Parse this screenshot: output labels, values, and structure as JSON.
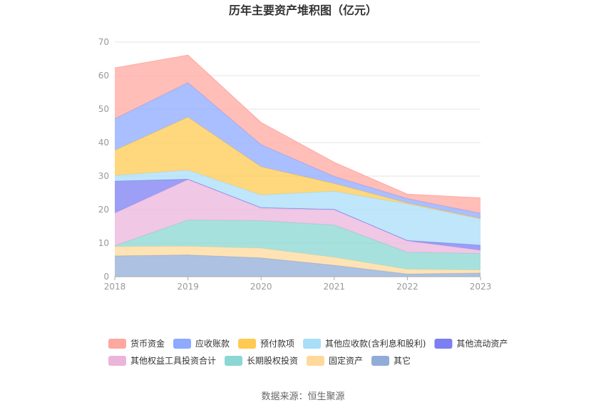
{
  "chart_data": {
    "type": "area",
    "stacked": true,
    "title": "历年主要资产堆积图（亿元）",
    "x": [
      "2018",
      "2019",
      "2020",
      "2021",
      "2022",
      "2023"
    ],
    "y_ticks": [
      "0",
      "10",
      "20",
      "30",
      "40",
      "50",
      "60",
      "70"
    ],
    "ylim": [
      0,
      70
    ],
    "grid": true,
    "legend_position": "bottom",
    "series": [
      {
        "name": "其它",
        "color": "#91acd8",
        "values": [
          6.2,
          6.5,
          5.6,
          3.4,
          0.8,
          1.1
        ]
      },
      {
        "name": "固定资产",
        "color": "#ffd99b",
        "values": [
          2.8,
          2.6,
          2.9,
          2.4,
          1.4,
          0.9
        ]
      },
      {
        "name": "长期股权投资",
        "color": "#8ad7d3",
        "values": [
          0.2,
          7.8,
          8.2,
          9.6,
          5.1,
          4.9
        ]
      },
      {
        "name": "其他权益工具投资合计",
        "color": "#ebb4db",
        "values": [
          9.8,
          12.1,
          3.8,
          4.6,
          3.4,
          1.0
        ]
      },
      {
        "name": "其他流动资产",
        "color": "#7b7ff2",
        "values": [
          9.5,
          0.1,
          0.1,
          0.1,
          0.1,
          1.5
        ]
      },
      {
        "name": "其他应收款(含利息和股利)",
        "color": "#a9def8",
        "values": [
          1.7,
          2.7,
          3.8,
          5.4,
          10.9,
          7.8
        ]
      },
      {
        "name": "预付款项",
        "color": "#ffca52",
        "values": [
          7.5,
          15.8,
          8.4,
          2.3,
          0.3,
          0.2
        ]
      },
      {
        "name": "应收账款",
        "color": "#8ea9ff",
        "values": [
          9.4,
          10.3,
          6.6,
          2.1,
          1.3,
          1.5
        ]
      },
      {
        "name": "货币资金",
        "color": "#ffa8a0",
        "values": [
          15.2,
          8.2,
          6.6,
          4.2,
          1.3,
          4.6
        ]
      }
    ],
    "legend_order": [
      "货币资金",
      "应收账款",
      "预付款项",
      "其他应收款(含利息和股利)",
      "其他流动资产",
      "其他权益工具投资合计",
      "长期股权投资",
      "固定资产",
      "其它"
    ]
  },
  "footer": {
    "source": "数据来源：恒生聚源"
  }
}
